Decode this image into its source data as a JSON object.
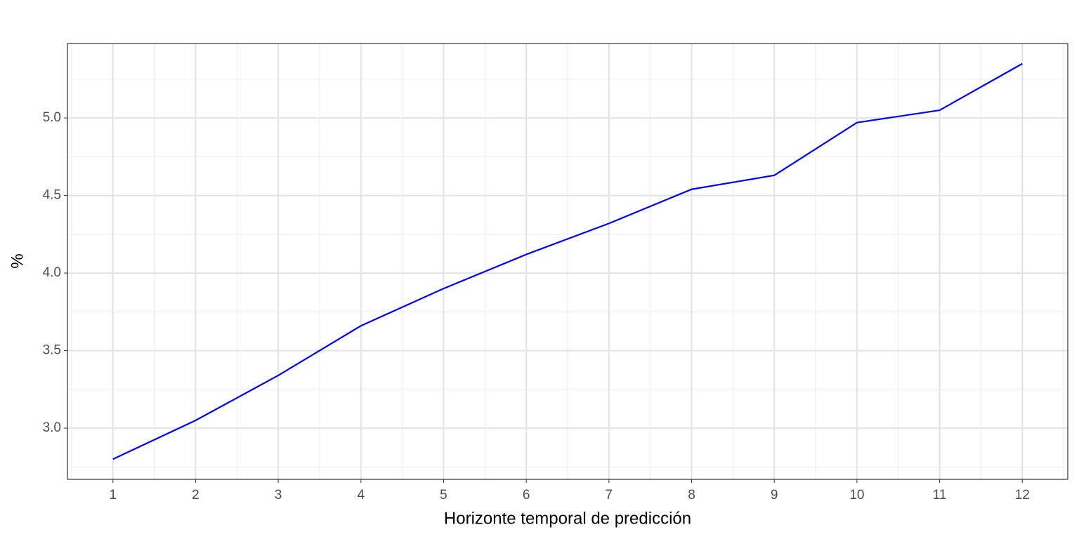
{
  "chart_data": {
    "type": "line",
    "x_label": "Horizonte temporal de predicción",
    "y_label": "%",
    "x": [
      1,
      2,
      3,
      4,
      5,
      6,
      7,
      8,
      9,
      10,
      11,
      12
    ],
    "series": [
      {
        "color": "#0000ff",
        "values": [
          2.8,
          3.05,
          3.34,
          3.66,
          3.9,
          4.12,
          4.32,
          4.54,
          4.63,
          4.97,
          5.05,
          5.35
        ]
      }
    ],
    "xlim": [
      0.45,
      12.55
    ],
    "ylim": [
      2.67,
      5.48
    ],
    "xticks": [
      1,
      2,
      3,
      4,
      5,
      6,
      7,
      8,
      9,
      10,
      11,
      12
    ],
    "yticks": [
      {
        "value": 3,
        "label": "3.0"
      },
      {
        "value": 3.5,
        "label": "3.5"
      },
      {
        "value": 4,
        "label": "4.0"
      },
      {
        "value": 4.5,
        "label": "4.5"
      },
      {
        "value": 5,
        "label": "5.0"
      }
    ],
    "grid": true
  }
}
